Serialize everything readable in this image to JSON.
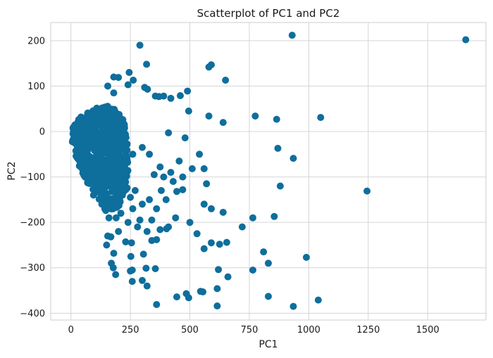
{
  "chart_data": {
    "type": "scatter",
    "title": "Scatterplot of PC1 and PC2",
    "xlabel": "PC1",
    "ylabel": "PC2",
    "xlim": [
      -85,
      1745
    ],
    "ylim": [
      -415,
      240
    ],
    "xticks": [
      0,
      250,
      500,
      750,
      1000,
      1250,
      1500
    ],
    "xtick_labels": [
      "0",
      "250",
      "500",
      "750",
      "1000",
      "1250",
      "1500"
    ],
    "yticks": [
      -400,
      -300,
      -200,
      -100,
      0,
      100,
      200
    ],
    "ytick_labels": [
      "−400",
      "−300",
      "−200",
      "−100",
      "0",
      "100",
      "200"
    ],
    "grid": true,
    "legend": false,
    "series": [
      {
        "color": "#0e6e9c",
        "points": [
          [
            930,
            212
          ],
          [
            1660,
            202
          ],
          [
            290,
            190
          ],
          [
            318,
            148
          ],
          [
            580,
            142
          ],
          [
            590,
            147
          ],
          [
            180,
            120
          ],
          [
            200,
            119
          ],
          [
            245,
            130
          ],
          [
            262,
            113
          ],
          [
            155,
            100
          ],
          [
            240,
            103
          ],
          [
            310,
            97
          ],
          [
            322,
            93
          ],
          [
            490,
            89
          ],
          [
            650,
            113
          ],
          [
            180,
            85
          ],
          [
            355,
            78
          ],
          [
            370,
            77
          ],
          [
            390,
            78
          ],
          [
            460,
            79
          ],
          [
            420,
            73
          ],
          [
            495,
            45
          ],
          [
            775,
            34
          ],
          [
            580,
            34
          ],
          [
            1050,
            31
          ],
          [
            640,
            20
          ],
          [
            865,
            27
          ],
          [
            410,
            -3
          ],
          [
            480,
            -14
          ],
          [
            540,
            -50
          ],
          [
            375,
            -78
          ],
          [
            455,
            -65
          ],
          [
            870,
            -37
          ],
          [
            935,
            -59
          ],
          [
            880,
            -120
          ],
          [
            1245,
            -131
          ],
          [
            560,
            -82
          ],
          [
            570,
            -115
          ],
          [
            510,
            -82
          ],
          [
            470,
            -128
          ],
          [
            445,
            -132
          ],
          [
            440,
            -190
          ],
          [
            410,
            -210
          ],
          [
            500,
            -200
          ],
          [
            530,
            -225
          ],
          [
            560,
            -160
          ],
          [
            590,
            -170
          ],
          [
            640,
            -178
          ],
          [
            720,
            -210
          ],
          [
            765,
            -190
          ],
          [
            855,
            -187
          ],
          [
            810,
            -265
          ],
          [
            830,
            -290
          ],
          [
            765,
            -305
          ],
          [
            590,
            -245
          ],
          [
            625,
            -248
          ],
          [
            655,
            -244
          ],
          [
            560,
            -258
          ],
          [
            990,
            -277
          ],
          [
            660,
            -320
          ],
          [
            620,
            -304
          ],
          [
            615,
            -346
          ],
          [
            615,
            -384
          ],
          [
            555,
            -353
          ],
          [
            545,
            -352
          ],
          [
            485,
            -357
          ],
          [
            445,
            -364
          ],
          [
            495,
            -366
          ],
          [
            830,
            -363
          ],
          [
            935,
            -385
          ],
          [
            1040,
            -371
          ],
          [
            360,
            -381
          ],
          [
            320,
            -340
          ],
          [
            300,
            -328
          ],
          [
            258,
            -330
          ],
          [
            258,
            -305
          ],
          [
            250,
            -307
          ],
          [
            316,
            -301
          ],
          [
            355,
            -302
          ],
          [
            178,
            -300
          ],
          [
            188,
            -315
          ],
          [
            252,
            -275
          ],
          [
            305,
            -270
          ],
          [
            340,
            -240
          ],
          [
            360,
            -238
          ],
          [
            255,
            -245
          ],
          [
            230,
            -243
          ],
          [
            375,
            -216
          ],
          [
            402,
            -214
          ],
          [
            180,
            -268
          ],
          [
            155,
            -230
          ],
          [
            168,
            -232
          ],
          [
            160,
            -190
          ],
          [
            190,
            -190
          ],
          [
            210,
            -180
          ],
          [
            240,
            -200
          ],
          [
            280,
            -210
          ],
          [
            320,
            -220
          ],
          [
            260,
            -170
          ],
          [
            300,
            -160
          ],
          [
            330,
            -150
          ],
          [
            150,
            -250
          ],
          [
            200,
            -220
          ],
          [
            130,
            -160
          ],
          [
            95,
            -140
          ],
          [
            250,
            -145
          ],
          [
            360,
            -170
          ],
          [
            400,
            -150
          ],
          [
            430,
            -110
          ],
          [
            470,
            -100
          ],
          [
            390,
            -100
          ],
          [
            420,
            -90
          ],
          [
            350,
            -95
          ],
          [
            300,
            -35
          ],
          [
            330,
            -50
          ],
          [
            260,
            -50
          ],
          [
            170,
            -290
          ],
          [
            290,
            -195
          ],
          [
            340,
            -195
          ],
          [
            270,
            -130
          ],
          [
            380,
            -130
          ]
        ]
      }
    ]
  }
}
